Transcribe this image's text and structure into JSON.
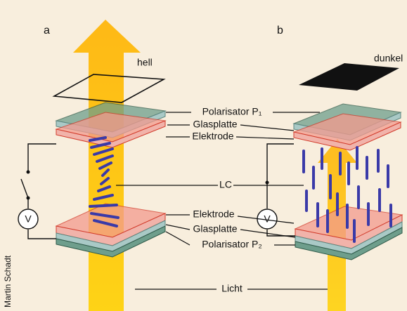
{
  "panels": [
    {
      "label": "a",
      "state": "hell"
    },
    {
      "label": "b",
      "state": "dunkel"
    }
  ],
  "labels": [
    "Polarisator P₁",
    "Glasplatte",
    "Elektrode",
    "LC",
    "Elektrode",
    "Glasplatte",
    "Polarisator P₂",
    "Licht"
  ],
  "voltmeters": [
    "V",
    "V"
  ],
  "credit": "Martin Schadt"
}
